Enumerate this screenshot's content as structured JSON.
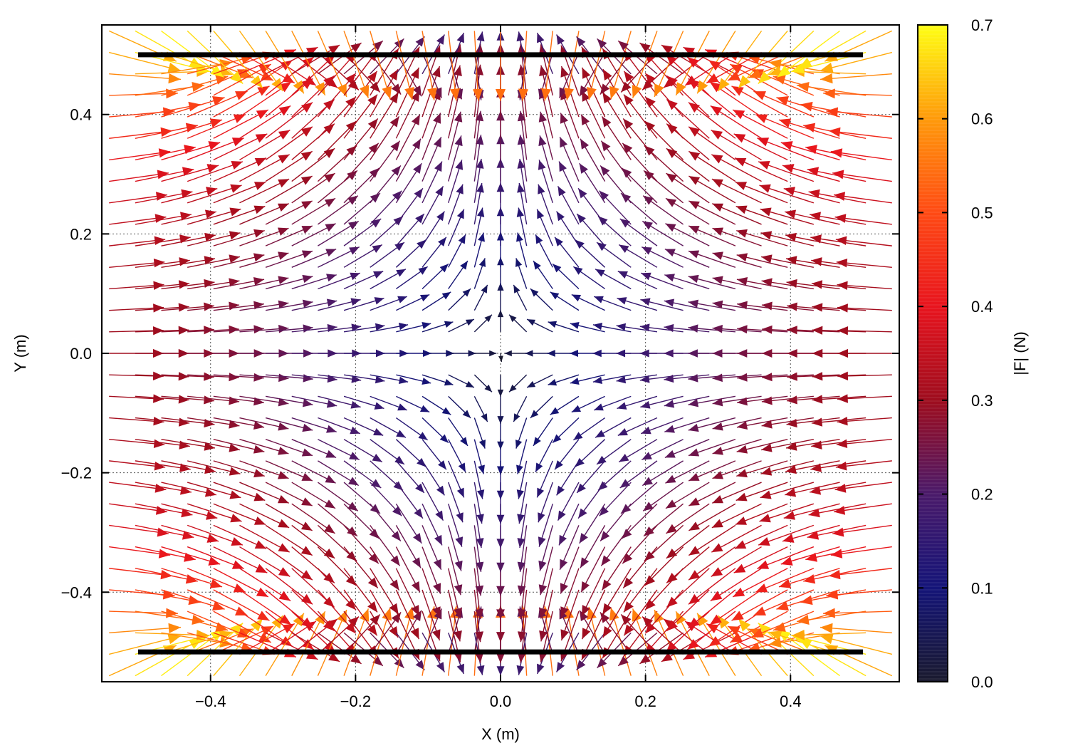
{
  "chart_data": {
    "type": "vector-field",
    "title": "",
    "xlabel": "X (m)",
    "ylabel": "Y (m)",
    "colorbar_label": "|F| (N)",
    "xlim": [
      -0.55,
      0.55
    ],
    "ylim": [
      -0.55,
      0.55
    ],
    "x_ticks": [
      -0.4,
      -0.2,
      0.0,
      0.2,
      0.4
    ],
    "x_tick_labels": [
      "−0.4",
      "−0.2",
      "0.0",
      "0.2",
      "0.4"
    ],
    "y_ticks": [
      -0.4,
      -0.2,
      0.0,
      0.2,
      0.4
    ],
    "y_tick_labels": [
      "−0.4",
      "−0.2",
      "0.0",
      "0.2",
      "0.4"
    ],
    "colorbar_range": [
      0.0,
      0.7
    ],
    "colorbar_ticks": [
      0.0,
      0.1,
      0.2,
      0.3,
      0.4,
      0.5,
      0.6,
      0.7
    ],
    "colorbar_tick_labels": [
      "0.0",
      "0.1",
      "0.2",
      "0.3",
      "0.4",
      "0.5",
      "0.6",
      "0.7"
    ],
    "grid": true,
    "grid_style": "dotted",
    "colormap_stops": [
      {
        "v": 0.0,
        "color": "#1a1a2e"
      },
      {
        "v": 0.1,
        "color": "#141478"
      },
      {
        "v": 0.2,
        "color": "#4a1a6a"
      },
      {
        "v": 0.3,
        "color": "#9e0d1e"
      },
      {
        "v": 0.4,
        "color": "#e8141e"
      },
      {
        "v": 0.5,
        "color": "#ff4a14"
      },
      {
        "v": 0.6,
        "color": "#ff9a0a"
      },
      {
        "v": 0.7,
        "color": "#ffff14"
      }
    ],
    "plates": [
      {
        "x": [
          -0.5,
          0.5
        ],
        "y": 0.5
      },
      {
        "x": [
          -0.5,
          0.5
        ],
        "y": -0.5
      }
    ],
    "field": {
      "x_range": [
        -0.54,
        0.54
      ],
      "y_range": [
        -0.54,
        0.54
      ],
      "nx": 31,
      "ny": 31
    }
  }
}
